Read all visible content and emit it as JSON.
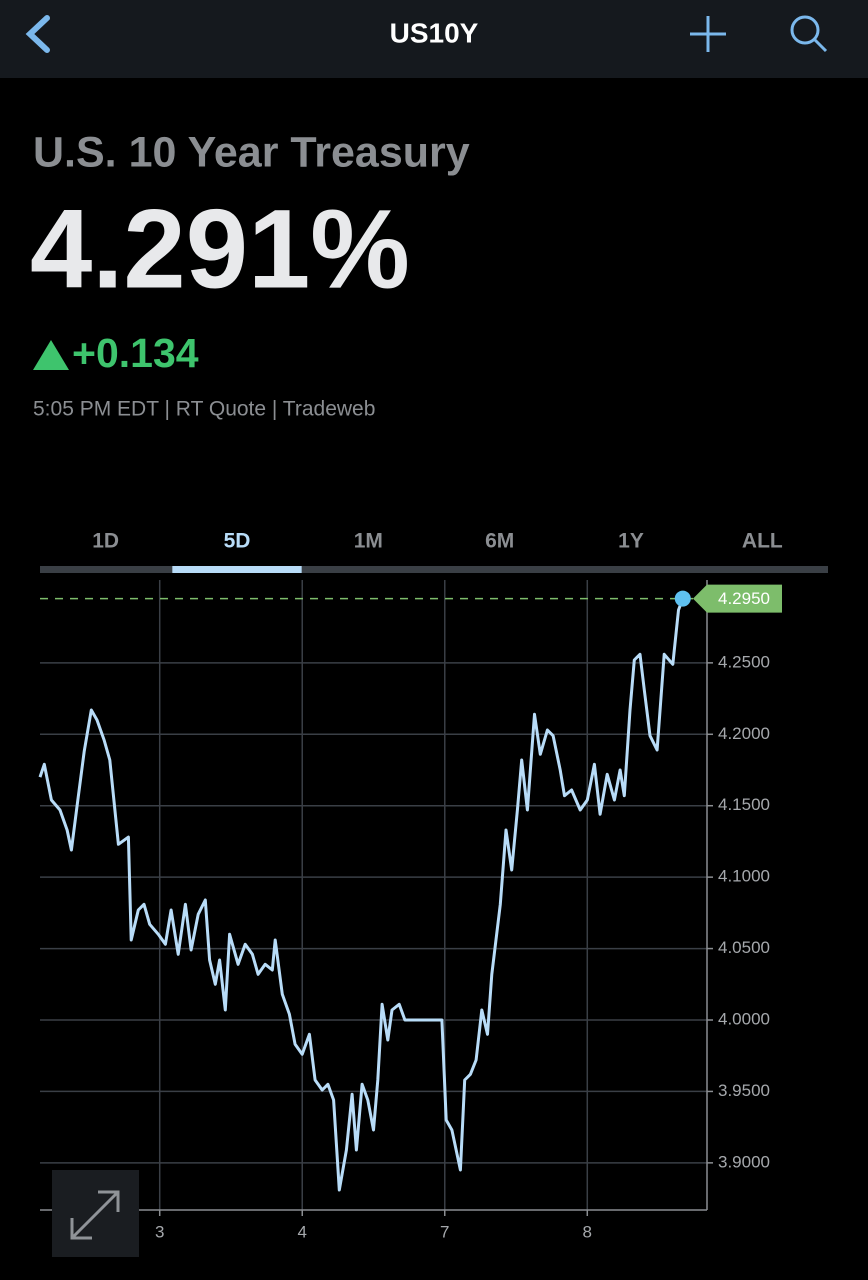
{
  "header": {
    "title": "US10Y"
  },
  "quote": {
    "name": "U.S. 10 Year Treasury",
    "price": "4.291%",
    "change": "+0.134",
    "meta": "5:05 PM EDT | RT Quote | Tradeweb"
  },
  "tabs": {
    "items": [
      "1D",
      "5D",
      "1M",
      "6M",
      "1Y",
      "ALL"
    ],
    "active": "5D"
  },
  "chart_data": {
    "type": "line",
    "color": "#b8dcf8",
    "grid": true,
    "x": [
      0.16,
      0.19,
      0.24,
      0.3,
      0.35,
      0.38,
      0.42,
      0.47,
      0.52,
      0.56,
      0.61,
      0.65,
      0.71,
      0.78,
      0.8,
      0.85,
      0.89,
      0.93,
      0.99,
      1.04,
      1.08,
      1.13,
      1.18,
      1.22,
      1.27,
      1.32,
      1.35,
      1.39,
      1.42,
      1.46,
      1.49,
      1.55,
      1.6,
      1.65,
      1.69,
      1.74,
      1.79,
      1.81,
      1.86,
      1.91,
      1.95,
      2.0,
      2.05,
      2.09,
      2.14,
      2.18,
      2.22,
      2.26,
      2.31,
      2.35,
      2.38,
      2.42,
      2.46,
      2.5,
      2.53,
      2.56,
      2.6,
      2.63,
      2.68,
      2.72,
      2.98,
      3.01,
      3.05,
      3.11,
      3.14,
      3.18,
      3.22,
      3.26,
      3.3,
      3.33,
      3.39,
      3.43,
      3.47,
      3.51,
      3.54,
      3.58,
      3.63,
      3.67,
      3.72,
      3.76,
      3.81,
      3.84,
      3.89,
      3.95,
      4.0,
      4.05,
      4.09,
      4.14,
      4.19,
      4.23,
      4.26,
      4.3,
      4.33,
      4.37,
      4.4,
      4.44,
      4.49,
      4.54,
      4.6,
      4.64,
      4.67
    ],
    "values": [
      4.17,
      4.179,
      4.154,
      4.147,
      4.133,
      4.119,
      4.15,
      4.188,
      4.217,
      4.21,
      4.196,
      4.182,
      4.123,
      4.128,
      4.056,
      4.077,
      4.081,
      4.067,
      4.06,
      4.053,
      4.077,
      4.046,
      4.081,
      4.049,
      4.074,
      4.084,
      4.042,
      4.025,
      4.042,
      4.007,
      4.06,
      4.039,
      4.053,
      4.046,
      4.032,
      4.039,
      4.035,
      4.056,
      4.018,
      4.004,
      3.983,
      3.976,
      3.99,
      3.958,
      3.951,
      3.955,
      3.944,
      3.881,
      3.909,
      3.948,
      3.909,
      3.955,
      3.944,
      3.923,
      3.958,
      4.011,
      3.986,
      4.007,
      4.011,
      4.0,
      4.0,
      3.93,
      3.923,
      3.895,
      3.958,
      3.962,
      3.972,
      4.007,
      3.99,
      4.032,
      4.081,
      4.133,
      4.105,
      4.147,
      4.182,
      4.147,
      4.214,
      4.186,
      4.203,
      4.199,
      4.175,
      4.157,
      4.161,
      4.147,
      4.154,
      4.179,
      4.144,
      4.172,
      4.154,
      4.175,
      4.157,
      4.217,
      4.252,
      4.256,
      4.231,
      4.199,
      4.189,
      4.256,
      4.249,
      4.287,
      4.295
    ],
    "xlim": [
      0.16,
      4.84
    ],
    "xticks": [
      {
        "value": 1,
        "label": "3"
      },
      {
        "value": 2,
        "label": "4"
      },
      {
        "value": 3,
        "label": "7"
      },
      {
        "value": 4,
        "label": "8"
      }
    ],
    "ylim": [
      3.867,
      4.308
    ],
    "yticks": [
      {
        "value": 3.9,
        "label": "3.9000"
      },
      {
        "value": 3.95,
        "label": "3.9500"
      },
      {
        "value": 4.0,
        "label": "4.0000"
      },
      {
        "value": 4.05,
        "label": "4.0500"
      },
      {
        "value": 4.1,
        "label": "4.1000"
      },
      {
        "value": 4.15,
        "label": "4.1500"
      },
      {
        "value": 4.2,
        "label": "4.2000"
      },
      {
        "value": 4.25,
        "label": "4.2500"
      }
    ],
    "last_value": {
      "value": 4.295,
      "label": "4.2950",
      "color": "#7dbd6b"
    }
  }
}
